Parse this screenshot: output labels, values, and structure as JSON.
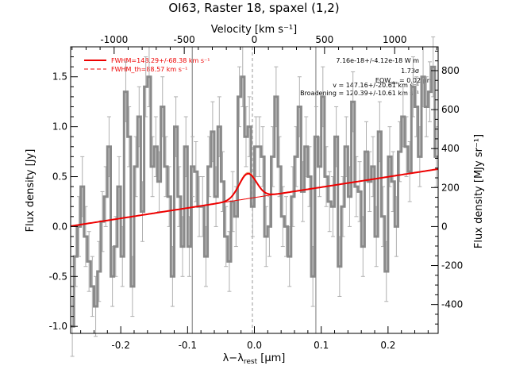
{
  "chart_data": {
    "type": "line",
    "title": "OI63, Raster 18, spaxel (1,2)",
    "xlabel": "λ−λ",
    "xlabel_sub": "rest",
    "xlabel_unit": " [μm]",
    "ylabel": "Flux density [Jy]",
    "top_axis_label": "Velocity [km s⁻¹]",
    "right_axis_label": "Flux density [MJy sr⁻¹]",
    "xlim": [
      -0.275,
      0.275
    ],
    "ylim": [
      -1.07,
      1.8
    ],
    "top_xlim": [
      -1310,
      1310
    ],
    "right_ylim": [
      -548,
      922
    ],
    "x_ticks": [
      "-0.2",
      "-0.1",
      "0.0",
      "0.1",
      "0.2"
    ],
    "y_ticks": [
      "-1.0",
      "-0.5",
      "0.0",
      "0.5",
      "1.0",
      "1.5"
    ],
    "top_ticks": [
      "-1000",
      "-500",
      "0",
      "500",
      "1000"
    ],
    "right_ticks": [
      "-400",
      "-200",
      "0",
      "200",
      "400",
      "600",
      "800"
    ],
    "vlines_solid": [
      -0.093,
      0.092
    ],
    "vline_dashed": -0.003,
    "legend": [
      {
        "label": "FWHM=148.29+/-68.38 km s⁻¹",
        "style": "solid",
        "color": "#ee0000"
      },
      {
        "label": "FWHM_th=88.57 km s⁻¹",
        "style": "dashed",
        "color": "#ee0000"
      }
    ],
    "annotations": [
      "7.16e-18+/-4.12e-18 W m",
      "1.73σ",
      "EQW",
      "= 0.02 μm",
      "v = 147.16+/-20.61 km s⁻¹",
      "Broadening = 120.39+/-10.61 km s⁻¹"
    ],
    "series": [
      {
        "name": "",
        "style": "histogram-errorbars",
        "color": "#888888",
        "x": [
          -0.275,
          -0.27,
          -0.265,
          -0.26,
          -0.255,
          -0.25,
          -0.245,
          -0.24,
          -0.235,
          -0.23,
          -0.225,
          -0.22,
          -0.215,
          -0.21,
          -0.205,
          -0.2,
          -0.195,
          -0.19,
          -0.185,
          -0.18,
          -0.175,
          -0.17,
          -0.165,
          -0.16,
          -0.155,
          -0.15,
          -0.145,
          -0.14,
          -0.135,
          -0.13,
          -0.125,
          -0.12,
          -0.115,
          -0.11,
          -0.105,
          -0.1,
          -0.095,
          -0.09,
          -0.085,
          -0.08,
          -0.075,
          -0.07,
          -0.065,
          -0.06,
          -0.055,
          -0.05,
          -0.045,
          -0.04,
          -0.035,
          -0.03,
          -0.025,
          -0.02,
          -0.015,
          -0.01,
          -0.005,
          0.0,
          0.005,
          0.01,
          0.015,
          0.02,
          0.025,
          0.03,
          0.035,
          0.04,
          0.045,
          0.05,
          0.055,
          0.06,
          0.065,
          0.07,
          0.075,
          0.08,
          0.085,
          0.09,
          0.095,
          0.1,
          0.105,
          0.11,
          0.115,
          0.12,
          0.125,
          0.13,
          0.135,
          0.14,
          0.145,
          0.15,
          0.155,
          0.16,
          0.165,
          0.17,
          0.175,
          0.18,
          0.185,
          0.19,
          0.195,
          0.2,
          0.205,
          0.21,
          0.215,
          0.22,
          0.225,
          0.23,
          0.235,
          0.24,
          0.245,
          0.25,
          0.255,
          0.26,
          0.265,
          0.27
        ],
        "y": [
          -1.0,
          -0.3,
          0.0,
          0.4,
          -0.1,
          -0.35,
          -0.6,
          -0.8,
          -0.45,
          0.05,
          0.3,
          0.8,
          -0.5,
          -0.2,
          0.4,
          -0.3,
          1.35,
          0.9,
          -0.6,
          0.6,
          1.1,
          0.15,
          1.4,
          1.5,
          0.6,
          0.8,
          0.45,
          1.2,
          0.6,
          0.3,
          -0.5,
          1.0,
          0.3,
          -0.2,
          0.8,
          -0.2,
          0.6,
          0.55,
          0.2,
          0.2,
          -0.3,
          0.6,
          0.95,
          0.3,
          1.0,
          0.45,
          -0.1,
          -0.35,
          0.25,
          0.1,
          1.3,
          1.5,
          0.9,
          1.0,
          0.2,
          0.8,
          0.8,
          0.7,
          -0.1,
          0.0,
          0.7,
          1.3,
          0.6,
          0.1,
          0.0,
          -0.3,
          0.3,
          0.7,
          1.2,
          0.35,
          0.8,
          0.5,
          -0.5,
          0.9,
          0.6,
          1.3,
          0.5,
          0.25,
          0.2,
          0.9,
          -0.4,
          0.2,
          0.8,
          0.3,
          1.25,
          0.4,
          0.35,
          -0.2,
          0.75,
          0.45,
          0.6,
          -0.1,
          0.95,
          0.1,
          -0.45,
          0.7,
          0.45,
          0.0,
          0.75,
          1.1,
          0.8,
          0.55,
          1.4,
          1.2,
          0.7,
          1.5,
          1.2,
          1.35,
          1.6,
          0.7
        ],
        "errors": [
          0.3,
          0.3,
          0.3,
          0.3,
          0.3,
          0.3,
          0.3,
          0.3,
          0.3,
          0.3,
          0.3,
          0.3,
          0.3,
          0.3,
          0.3,
          0.3,
          0.3,
          0.3,
          0.3,
          0.3,
          0.3,
          0.3,
          0.3,
          0.3,
          0.3,
          0.3,
          0.3,
          0.3,
          0.3,
          0.3,
          0.3,
          0.3,
          0.3,
          0.3,
          0.3,
          0.3,
          0.3,
          0.3,
          0.3,
          0.3,
          0.3,
          0.3,
          0.3,
          0.3,
          0.3,
          0.3,
          0.3,
          0.3,
          0.3,
          0.3,
          0.3,
          0.3,
          0.3,
          0.3,
          0.3,
          0.3,
          0.3,
          0.3,
          0.3,
          0.3,
          0.3,
          0.3,
          0.3,
          0.3,
          0.3,
          0.3,
          0.3,
          0.3,
          0.3,
          0.3,
          0.3,
          0.3,
          0.3,
          0.3,
          0.3,
          0.3,
          0.3,
          0.3,
          0.3,
          0.3,
          0.3,
          0.3,
          0.3,
          0.3,
          0.3,
          0.3,
          0.3,
          0.3,
          0.3,
          0.3,
          0.3,
          0.3,
          0.3,
          0.3,
          0.3,
          0.3,
          0.3,
          0.3,
          0.3,
          0.3,
          0.3,
          0.3,
          0.3,
          0.3,
          0.3,
          0.3,
          0.3,
          0.3,
          0.3,
          0.3
        ]
      },
      {
        "name": "",
        "style": "fit",
        "color": "#ee0000",
        "baseline": {
          "intercept": 0.29,
          "slope": 1.04
        },
        "gaussian": {
          "center": -0.01,
          "amplitude": 0.25,
          "sigma": 0.013
        }
      }
    ]
  }
}
